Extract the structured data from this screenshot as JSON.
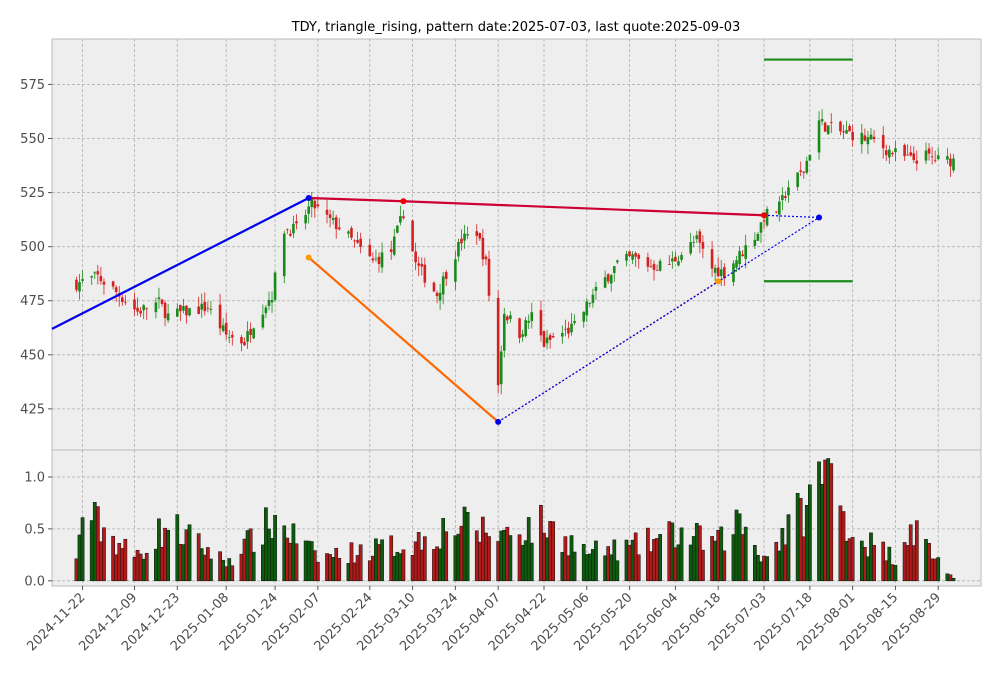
{
  "chart_data": {
    "type": "candlestick",
    "title": "TDY, triangle_rising, pattern date:2025-07-03, last quote:2025-09-03",
    "price_ylim": [
      406,
      596
    ],
    "price_yticks": [
      425,
      450,
      475,
      500,
      525,
      550,
      575
    ],
    "volume_ylim": [
      -0.05,
      1.26
    ],
    "volume_yticks": [
      "0.0",
      "0.5",
      "1.0"
    ],
    "xlim": [
      "2024-11-12",
      "2025-09-12"
    ],
    "xticks": [
      "2024-11-22",
      "2024-12-09",
      "2024-12-23",
      "2025-01-08",
      "2025-01-24",
      "2025-02-07",
      "2025-02-24",
      "2025-03-10",
      "2025-03-24",
      "2025-04-07",
      "2025-04-22",
      "2025-05-06",
      "2025-05-20",
      "2025-06-04",
      "2025-06-18",
      "2025-07-03",
      "2025-07-18",
      "2025-08-01",
      "2025-08-15",
      "2025-08-29"
    ],
    "grid": true,
    "colors": {
      "up": "#1a8a1a",
      "down": "#d62020",
      "volume_up": "#0d5c0d",
      "volume_down": "#b21a1a"
    },
    "pattern_lines": [
      {
        "color": "#0000ee",
        "style": "solid",
        "points": [
          [
            "2024-11-12",
            462
          ],
          [
            "2025-02-04",
            522.5
          ]
        ]
      },
      {
        "color": "#cc0033",
        "style": "solid",
        "points": [
          [
            "2025-02-04",
            522.5
          ],
          [
            "2025-03-07",
            521
          ],
          [
            "2025-07-03",
            514.5
          ]
        ]
      },
      {
        "color": "#ff6600",
        "style": "solid",
        "points": [
          [
            "2025-02-04",
            495
          ],
          [
            "2025-04-07",
            419
          ]
        ]
      },
      {
        "color": "#cc0033",
        "style": "dotted",
        "points": [
          [
            "2025-04-07",
            419
          ],
          [
            "2025-06-18",
            484
          ]
        ]
      },
      {
        "color": "#0000ee",
        "style": "dotted",
        "points": [
          [
            "2025-04-07",
            419
          ],
          [
            "2025-07-21",
            513.5
          ]
        ]
      },
      {
        "color": "#0000ee",
        "style": "dotted",
        "points": [
          [
            "2025-07-03",
            514.5
          ],
          [
            "2025-07-21",
            513.5
          ]
        ]
      },
      {
        "color": "#1a8a1a",
        "style": "solid",
        "points": [
          [
            "2025-07-03",
            586.5
          ],
          [
            "2025-08-01",
            586.5
          ]
        ]
      },
      {
        "color": "#1a8a1a",
        "style": "solid",
        "points": [
          [
            "2025-07-03",
            484
          ],
          [
            "2025-08-01",
            484
          ]
        ]
      }
    ],
    "pattern_markers": [
      {
        "date": "2025-02-04",
        "value": 522.5,
        "color": "#0000ee"
      },
      {
        "date": "2025-03-07",
        "value": 521,
        "color": "#ee0000"
      },
      {
        "date": "2025-07-03",
        "value": 514.5,
        "color": "#ee0000"
      },
      {
        "date": "2025-07-21",
        "value": 513.5,
        "color": "#0000ee"
      },
      {
        "date": "2025-02-04",
        "value": 495,
        "color": "#ff9900"
      },
      {
        "date": "2025-04-07",
        "value": 419,
        "color": "#0000ee"
      },
      {
        "date": "2025-06-18",
        "value": 484,
        "color": "#ff9900"
      }
    ],
    "close_anchors": [
      [
        "2024-11-20",
        483
      ],
      [
        "2024-11-27",
        486
      ],
      [
        "2024-12-03",
        479
      ],
      [
        "2024-12-10",
        470
      ],
      [
        "2024-12-17",
        474
      ],
      [
        "2024-12-20",
        468
      ],
      [
        "2024-12-26",
        470
      ],
      [
        "2025-01-02",
        472
      ],
      [
        "2025-01-08",
        459
      ],
      [
        "2025-01-14",
        456
      ],
      [
        "2025-01-17",
        465
      ],
      [
        "2025-01-23",
        478
      ],
      [
        "2025-01-27",
        508
      ],
      [
        "2025-01-31",
        508
      ],
      [
        "2025-02-05",
        520
      ],
      [
        "2025-02-10",
        513
      ],
      [
        "2025-02-14",
        509
      ],
      [
        "2025-02-20",
        500
      ],
      [
        "2025-02-25",
        493
      ],
      [
        "2025-03-03",
        498
      ],
      [
        "2025-03-07",
        516
      ],
      [
        "2025-03-11",
        492
      ],
      [
        "2025-03-14",
        486
      ],
      [
        "2025-03-18",
        478
      ],
      [
        "2025-03-21",
        488
      ],
      [
        "2025-03-26",
        503
      ],
      [
        "2025-03-31",
        507
      ],
      [
        "2025-04-03",
        492
      ],
      [
        "2025-04-07",
        436
      ],
      [
        "2025-04-09",
        470
      ],
      [
        "2025-04-14",
        460
      ],
      [
        "2025-04-18",
        468
      ],
      [
        "2025-04-22",
        455
      ],
      [
        "2025-04-28",
        460
      ],
      [
        "2025-05-02",
        463
      ],
      [
        "2025-05-07",
        475
      ],
      [
        "2025-05-12",
        485
      ],
      [
        "2025-05-16",
        492
      ],
      [
        "2025-05-21",
        495
      ],
      [
        "2025-05-27",
        491
      ],
      [
        "2025-06-02",
        492
      ],
      [
        "2025-06-06",
        497
      ],
      [
        "2025-06-11",
        503
      ],
      [
        "2025-06-16",
        490
      ],
      [
        "2025-06-20",
        488
      ],
      [
        "2025-06-25",
        496
      ],
      [
        "2025-07-01",
        507
      ],
      [
        "2025-07-03",
        514
      ],
      [
        "2025-07-08",
        518
      ],
      [
        "2025-07-11",
        528
      ],
      [
        "2025-07-16",
        535
      ],
      [
        "2025-07-21",
        558
      ],
      [
        "2025-07-24",
        555
      ],
      [
        "2025-07-28",
        553
      ],
      [
        "2025-08-01",
        552
      ],
      [
        "2025-08-05",
        550
      ],
      [
        "2025-08-08",
        549
      ],
      [
        "2025-08-12",
        545
      ],
      [
        "2025-08-15",
        543
      ],
      [
        "2025-08-20",
        540
      ],
      [
        "2025-08-25",
        542
      ],
      [
        "2025-08-29",
        540
      ],
      [
        "2025-09-03",
        540
      ]
    ],
    "volume_anchors": [
      [
        "2024-11-20",
        0.2
      ],
      [
        "2024-11-22",
        0.75
      ],
      [
        "2024-12-09",
        0.25
      ],
      [
        "2024-12-20",
        0.6
      ],
      [
        "2025-01-08",
        0.2
      ],
      [
        "2025-01-24",
        0.65
      ],
      [
        "2025-02-07",
        0.25
      ],
      [
        "2025-03-10",
        0.4
      ],
      [
        "2025-03-24",
        0.6
      ],
      [
        "2025-04-07",
        0.5
      ],
      [
        "2025-04-22",
        0.6
      ],
      [
        "2025-05-06",
        0.3
      ],
      [
        "2025-05-20",
        0.35
      ],
      [
        "2025-06-04",
        0.5
      ],
      [
        "2025-06-18",
        0.4
      ],
      [
        "2025-06-25",
        0.65
      ],
      [
        "2025-07-03",
        0.25
      ],
      [
        "2025-07-18",
        0.85
      ],
      [
        "2025-07-23",
        1.22
      ],
      [
        "2025-08-01",
        0.5
      ],
      [
        "2025-08-15",
        0.25
      ],
      [
        "2025-08-20",
        0.6
      ],
      [
        "2025-08-29",
        0.22
      ],
      [
        "2025-09-03",
        0.02
      ]
    ]
  }
}
